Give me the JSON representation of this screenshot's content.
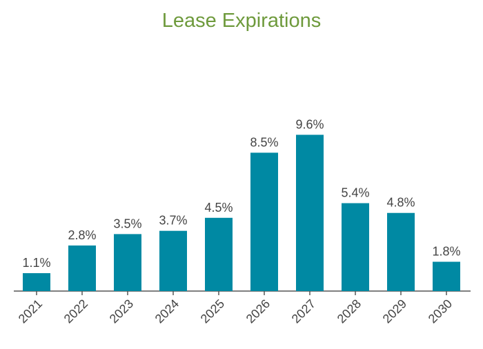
{
  "chart_data": {
    "type": "bar",
    "title": "Lease Expirations",
    "xlabel": "",
    "ylabel": "",
    "categories": [
      "2021",
      "2022",
      "2023",
      "2024",
      "2025",
      "2026",
      "2027",
      "2028",
      "2029",
      "2030"
    ],
    "values": [
      1.1,
      2.8,
      3.5,
      3.7,
      4.5,
      8.5,
      9.6,
      5.4,
      4.8,
      1.8
    ],
    "data_labels": [
      "1.1%",
      "2.8%",
      "3.5%",
      "3.7%",
      "4.5%",
      "8.5%",
      "9.6%",
      "5.4%",
      "4.8%",
      "1.8%"
    ],
    "ylim": [
      0,
      12
    ],
    "grid": false,
    "legend": "none",
    "colors": {
      "bar": "#0089A3",
      "title": "#6E9A3C",
      "axis": "#555555",
      "text": "#444444"
    }
  }
}
